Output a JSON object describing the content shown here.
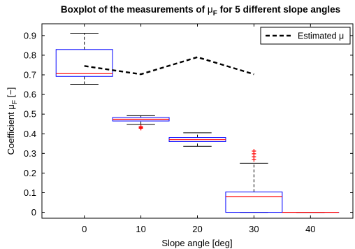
{
  "chart_data": {
    "type": "boxplot",
    "title_main": "Boxplot of the measurements of ",
    "title_symbol": "μ",
    "title_symbol_sub": "F",
    "title_tail": " for 5 different slope angles",
    "xlabel": "Slope angle [deg]",
    "ylabel_main": "Coefficient ",
    "ylabel_symbol": "μ",
    "ylabel_sub": "F",
    "ylabel_tail": " [−]",
    "categories": [
      "0",
      "10",
      "20",
      "30",
      "40"
    ],
    "xlim": [
      -7.5,
      47.5
    ],
    "ylim": [
      -0.03,
      0.96
    ],
    "yticks": [
      "0",
      "0.1",
      "0.2",
      "0.3",
      "0.4",
      "0.5",
      "0.6",
      "0.7",
      "0.8",
      "0.9"
    ],
    "grid": false,
    "legend_position": "top-right",
    "boxes": [
      {
        "x": 0,
        "whisker_low": 0.652,
        "q1": 0.692,
        "median": 0.706,
        "q3": 0.829,
        "whisker_high": 0.912,
        "outliers": []
      },
      {
        "x": 10,
        "whisker_low": 0.448,
        "q1": 0.465,
        "median": 0.474,
        "q3": 0.483,
        "whisker_high": 0.492,
        "outliers": [
          0.428,
          0.432,
          0.436
        ]
      },
      {
        "x": 20,
        "whisker_low": 0.336,
        "q1": 0.36,
        "median": 0.37,
        "q3": 0.381,
        "whisker_high": 0.405,
        "outliers": []
      },
      {
        "x": 30,
        "whisker_low": 0.0,
        "q1": 0.0,
        "median": 0.08,
        "q3": 0.104,
        "whisker_high": 0.25,
        "outliers": [
          0.268,
          0.283,
          0.298,
          0.312
        ]
      },
      {
        "x": 40,
        "whisker_low": 0.0,
        "q1": 0.0,
        "median": 0.0,
        "q3": 0.0,
        "whisker_high": 0.0,
        "outliers": []
      }
    ],
    "estimated_series": {
      "name": "Estimated μ",
      "style": "dashed",
      "x": [
        0,
        10,
        20,
        30
      ],
      "y": [
        0.745,
        0.703,
        0.79,
        0.703
      ]
    },
    "colors": {
      "box": "#0000ff",
      "median": "#ff0000",
      "whisker": "#000000",
      "outlier": "#ff0000",
      "estimated_line": "#000000"
    }
  }
}
